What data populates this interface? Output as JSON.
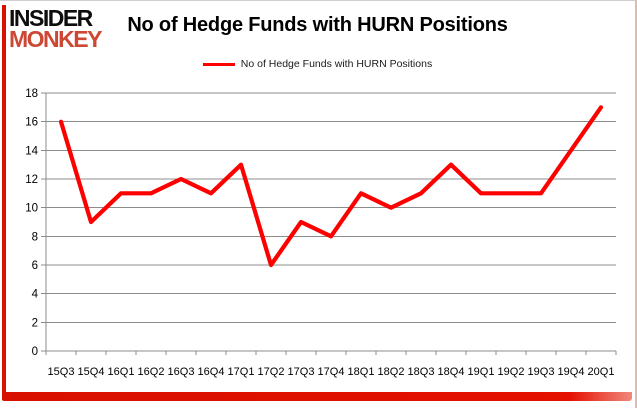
{
  "logo": {
    "line1": "INSIDER",
    "line2": "MONKEY",
    "line2_color": "#cd4733"
  },
  "title": "No of Hedge Funds with HURN Positions",
  "legend": {
    "label": "No of Hedge Funds with HURN Positions",
    "swatch_color": "#fe0000"
  },
  "colors": {
    "line": "#fe0000",
    "gridline": "#8c8c8c",
    "axis_text": "#000000",
    "accent_border": "#e10600"
  },
  "chart_data": {
    "type": "line",
    "title": "No of Hedge Funds with HURN Positions",
    "categories": [
      "15Q3",
      "15Q4",
      "16Q1",
      "16Q2",
      "16Q3",
      "16Q4",
      "17Q1",
      "17Q2",
      "17Q3",
      "17Q4",
      "18Q1",
      "18Q2",
      "18Q3",
      "18Q4",
      "19Q1",
      "19Q2",
      "19Q3",
      "19Q4",
      "20Q1"
    ],
    "values": [
      16,
      9,
      11,
      11,
      12,
      11,
      13,
      6,
      9,
      8,
      11,
      10,
      11,
      13,
      11,
      11,
      11,
      14,
      17
    ],
    "series_name": "No of Hedge Funds with HURN Positions",
    "xlabel": "",
    "ylabel": "",
    "ylim": [
      0,
      18
    ],
    "yticks": [
      0,
      2,
      4,
      6,
      8,
      10,
      12,
      14,
      16,
      18
    ],
    "grid": true,
    "legend_position": "top",
    "line_color": "#fe0000",
    "gridline_color": "#8c8c8c"
  }
}
